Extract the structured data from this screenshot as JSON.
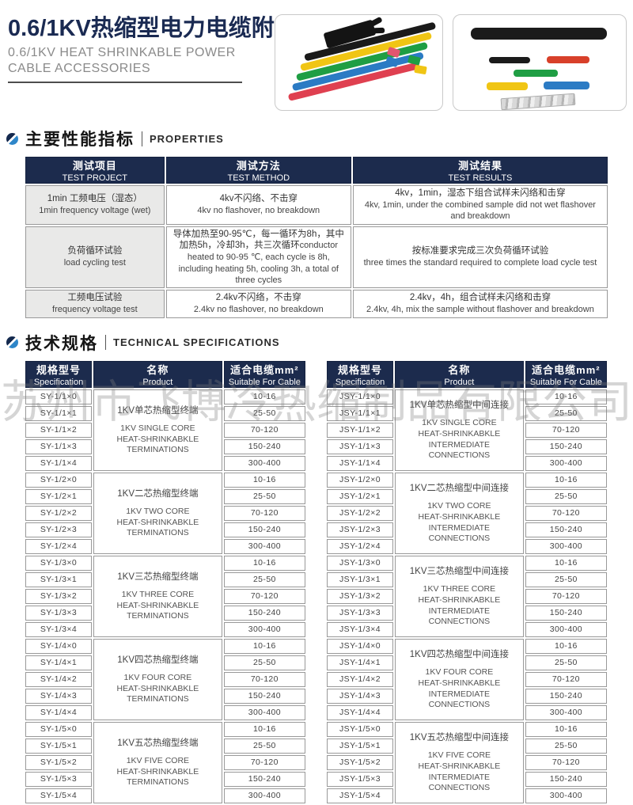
{
  "colors": {
    "navy_header": "#1c2b4d",
    "title_navy": "#1a2a52",
    "accent_blue": "#2e86c9"
  },
  "header": {
    "title_cn": "0.6/1KV热缩型电力电缆附件",
    "subtitle_lines": [
      "0.6/1KV HEAT SHRINKABLE POWER",
      "CABLE ACCESSORIES"
    ]
  },
  "watermark": "苏州市飞博冷热缩制品有限公司",
  "sections": [
    {
      "cn": "主要性能指标",
      "en": "PROPERTIES"
    },
    {
      "cn": "技术规格",
      "en": "TECHNICAL SPECIFICATIONS"
    }
  ],
  "properties_table": {
    "headers": [
      {
        "cn": "测试项目",
        "en": "TEST PROJECT"
      },
      {
        "cn": "测试方法",
        "en": "TEST METHOD"
      },
      {
        "cn": "测试结果",
        "en": "TEST RESULTS"
      }
    ],
    "rows": [
      {
        "project_cn": "1min 工频电压（湿态）",
        "project_en": "1min frequency voltage (wet)",
        "method_cn": "4kv不闪络、不击穿",
        "method_en": "4kv no flashover, no breakdown",
        "result_cn": "4kv，1min，湿态下组合试样未闪络和击穿",
        "result_en": "4kv, 1min, under the combined sample did not wet flashover and breakdown"
      },
      {
        "project_cn": "负荷循环试验",
        "project_en": "load cycling test",
        "method_cn": "导体加热至90-95℃，每一循环为8h，其中加热5h，冷却3h，共三次循环",
        "method_en": "conductor heated to 90-95 ℃, each cycle is 8h, including heating 5h, cooling 3h, a total of three cycles",
        "result_cn": "按标准要求完成三次负荷循环试验",
        "result_en": "three times the standard required to complete load cycle test"
      },
      {
        "project_cn": "工频电压试验",
        "project_en": "frequency voltage test",
        "method_cn": "2.4kv不闪络，不击穿",
        "method_en": "2.4kv no flashover, no breakdown",
        "result_cn": "2.4kv，4h，组合试样未闪络和击穿",
        "result_en": "2.4kv, 4h, mix the sample without flashover and breakdown"
      }
    ]
  },
  "spec_headers": [
    {
      "cn": "规格型号",
      "en": "Specification"
    },
    {
      "cn": "名称",
      "en": "Product"
    },
    {
      "cn": "适合电缆mm²",
      "en": "Suitable For Cable"
    }
  ],
  "cable_ranges": [
    "10-16",
    "25-50",
    "70-120",
    "150-240",
    "300-400"
  ],
  "spec_tables": [
    {
      "name": "terminations",
      "groups": [
        {
          "models": [
            "SY-1/1×0",
            "SY-1/1×1",
            "SY-1/1×2",
            "SY-1/1×3",
            "SY-1/1×4"
          ],
          "product_cn": "1KV单芯热缩型终端",
          "product_en": [
            "1KV SINGLE CORE",
            "HEAT-SHRINKABKLE",
            "TERMINATIONS"
          ]
        },
        {
          "models": [
            "SY-1/2×0",
            "SY-1/2×1",
            "SY-1/2×2",
            "SY-1/2×3",
            "SY-1/2×4"
          ],
          "product_cn": "1KV二芯热缩型终端",
          "product_en": [
            "1KV TWO CORE",
            "HEAT-SHRINKABKLE",
            "TERMINATIONS"
          ]
        },
        {
          "models": [
            "SY-1/3×0",
            "SY-1/3×1",
            "SY-1/3×2",
            "SY-1/3×3",
            "SY-1/3×4"
          ],
          "product_cn": "1KV三芯热缩型终端",
          "product_en": [
            "1KV THREE CORE",
            "HEAT-SHRINKABKLE",
            "TERMINATIONS"
          ]
        },
        {
          "models": [
            "SY-1/4×0",
            "SY-1/4×1",
            "SY-1/4×2",
            "SY-1/4×3",
            "SY-1/4×4"
          ],
          "product_cn": "1KV四芯热缩型终端",
          "product_en": [
            "1KV FOUR CORE",
            "HEAT-SHRINKABKLE",
            "TERMINATIONS"
          ]
        },
        {
          "models": [
            "SY-1/5×0",
            "SY-1/5×1",
            "SY-1/5×2",
            "SY-1/5×3",
            "SY-1/5×4"
          ],
          "product_cn": "1KV五芯热缩型终端",
          "product_en": [
            "1KV FIVE CORE",
            "HEAT-SHRINKABKLE",
            "TERMINATIONS"
          ]
        }
      ]
    },
    {
      "name": "intermediate-connections",
      "groups": [
        {
          "models": [
            "JSY-1/1×0",
            "JSY-1/1×1",
            "JSY-1/1×2",
            "JSY-1/1×3",
            "JSY-1/1×4"
          ],
          "product_cn": "1KV单芯热缩型中间连接",
          "product_en": [
            "1KV SINGLE CORE",
            "HEAT-SHRINKABKLE",
            "INTERMEDIATE CONNECTIONS"
          ]
        },
        {
          "models": [
            "JSY-1/2×0",
            "JSY-1/2×1",
            "JSY-1/2×2",
            "JSY-1/2×3",
            "JSY-1/2×4"
          ],
          "product_cn": "1KV二芯热缩型中间连接",
          "product_en": [
            "1KV TWO CORE",
            "HEAT-SHRINKABKLE",
            "INTERMEDIATE CONNECTIONS"
          ]
        },
        {
          "models": [
            "JSY-1/3×0",
            "JSY-1/3×1",
            "JSY-1/3×2",
            "JSY-1/3×3",
            "JSY-1/3×4"
          ],
          "product_cn": "1KV三芯热缩型中间连接",
          "product_en": [
            "1KV THREE CORE",
            "HEAT-SHRINKABKLE",
            "INTERMEDIATE CONNECTIONS"
          ]
        },
        {
          "models": [
            "JSY-1/4×0",
            "JSY-1/4×1",
            "JSY-1/4×2",
            "JSY-1/4×3",
            "JSY-1/4×4"
          ],
          "product_cn": "1KV四芯热缩型中间连接",
          "product_en": [
            "1KV FOUR CORE",
            "HEAT-SHRINKABKLE",
            "INTERMEDIATE CONNECTIONS"
          ]
        },
        {
          "models": [
            "JSY-1/5×0",
            "JSY-1/5×1",
            "JSY-1/5×2",
            "JSY-1/5×3",
            "JSY-1/5×4"
          ],
          "product_cn": "1KV五芯热缩型中间连接",
          "product_en": [
            "1KV FIVE CORE",
            "HEAT-SHRINKABKLE",
            "INTERMEDIATE CONNECTIONS"
          ]
        }
      ]
    }
  ]
}
